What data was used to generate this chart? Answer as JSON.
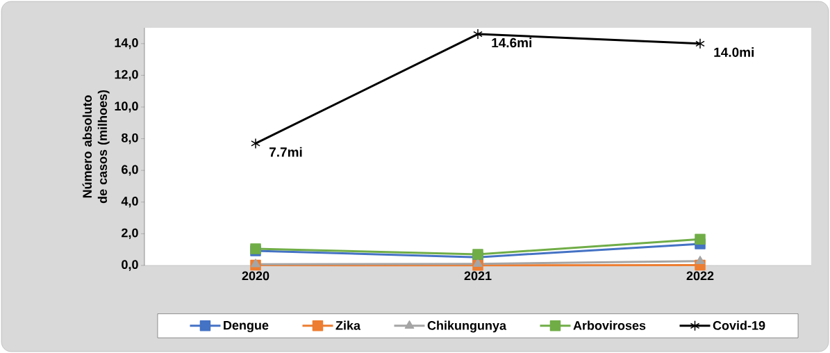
{
  "chart_data": {
    "type": "line",
    "ylabel": "Número absoluto de casos (milhoes)",
    "categories": [
      "2020",
      "2021",
      "2022"
    ],
    "ylim": [
      0,
      15
    ],
    "yticks": [
      {
        "value": 0,
        "label": "0,0"
      },
      {
        "value": 2,
        "label": "2,0"
      },
      {
        "value": 4,
        "label": "4,0"
      },
      {
        "value": 6,
        "label": "6,0"
      },
      {
        "value": 8,
        "label": "8,0"
      },
      {
        "value": 10,
        "label": "10,0"
      },
      {
        "value": 12,
        "label": "12,0"
      },
      {
        "value": 14,
        "label": "14,0"
      }
    ],
    "series": [
      {
        "name": "Dengue",
        "color": "#4472c4",
        "marker": "square",
        "values": [
          0.92,
          0.52,
          1.36
        ]
      },
      {
        "name": "Zika",
        "color": "#ed7d31",
        "marker": "square",
        "values": [
          0.02,
          0.01,
          0.02
        ]
      },
      {
        "name": "Chikungunya",
        "color": "#a5a5a5",
        "marker": "triangle",
        "values": [
          0.08,
          0.1,
          0.27
        ]
      },
      {
        "name": "Arboviroses",
        "color": "#70ad47",
        "marker": "square",
        "values": [
          1.05,
          0.7,
          1.66
        ]
      },
      {
        "name": "Covid-19",
        "color": "#000000",
        "marker": "cross",
        "values": [
          7.7,
          14.6,
          14.0
        ],
        "value_labels": [
          "7.7mi",
          "14.6mi",
          "14.0mi"
        ]
      }
    ],
    "grid": false,
    "legend": "bottom"
  }
}
